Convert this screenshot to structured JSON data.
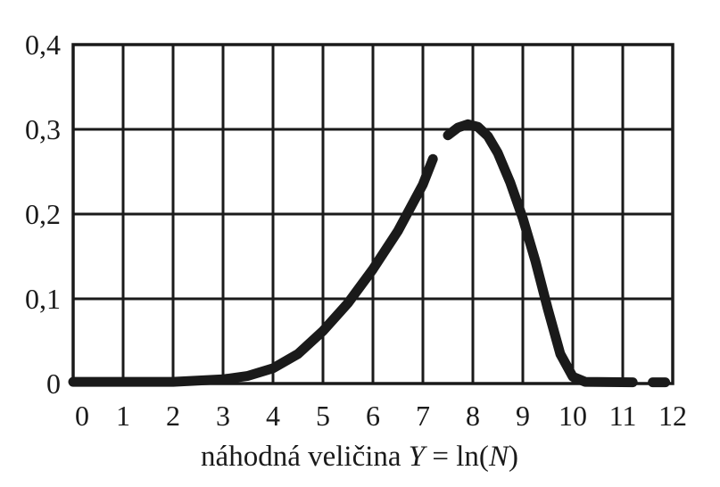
{
  "chart_data": {
    "type": "line",
    "title": "",
    "xlabel_prefix": "náhodná veličina ",
    "xlabel_var": "Y",
    "xlabel_eq": " = ln(",
    "xlabel_var2": "N",
    "xlabel_close": ")",
    "ylabel": "",
    "xlim": [
      0,
      12
    ],
    "ylim": [
      0,
      0.4
    ],
    "grid": true,
    "x_ticks": [
      "0",
      "1",
      "2",
      "3",
      "4",
      "5",
      "6",
      "7",
      "8",
      "9",
      "10",
      "11",
      "12"
    ],
    "y_ticks": [
      "0",
      "0,1",
      "0,2",
      "0,3",
      "0,4"
    ],
    "series": [
      {
        "segments": [
          [
            [
              0,
              0.002
            ],
            [
              1,
              0.002
            ],
            [
              2,
              0.002
            ],
            [
              3,
              0.005
            ],
            [
              3.5,
              0.009
            ],
            [
              4,
              0.018
            ],
            [
              4.5,
              0.035
            ],
            [
              5,
              0.062
            ],
            [
              5.5,
              0.095
            ],
            [
              6,
              0.135
            ],
            [
              6.5,
              0.18
            ],
            [
              7,
              0.235
            ],
            [
              7.2,
              0.265
            ]
          ],
          [
            [
              7.5,
              0.293
            ],
            [
              7.7,
              0.302
            ],
            [
              7.9,
              0.306
            ],
            [
              8.1,
              0.303
            ],
            [
              8.3,
              0.292
            ],
            [
              8.5,
              0.272
            ],
            [
              8.75,
              0.237
            ],
            [
              9,
              0.195
            ],
            [
              9.25,
              0.145
            ],
            [
              9.5,
              0.088
            ],
            [
              9.75,
              0.035
            ],
            [
              10,
              0.008
            ],
            [
              10.25,
              0.002
            ],
            [
              11.2,
              0.0015
            ]
          ],
          [
            [
              11.6,
              0.0015
            ],
            [
              11.85,
              0.0015
            ]
          ]
        ]
      }
    ]
  }
}
